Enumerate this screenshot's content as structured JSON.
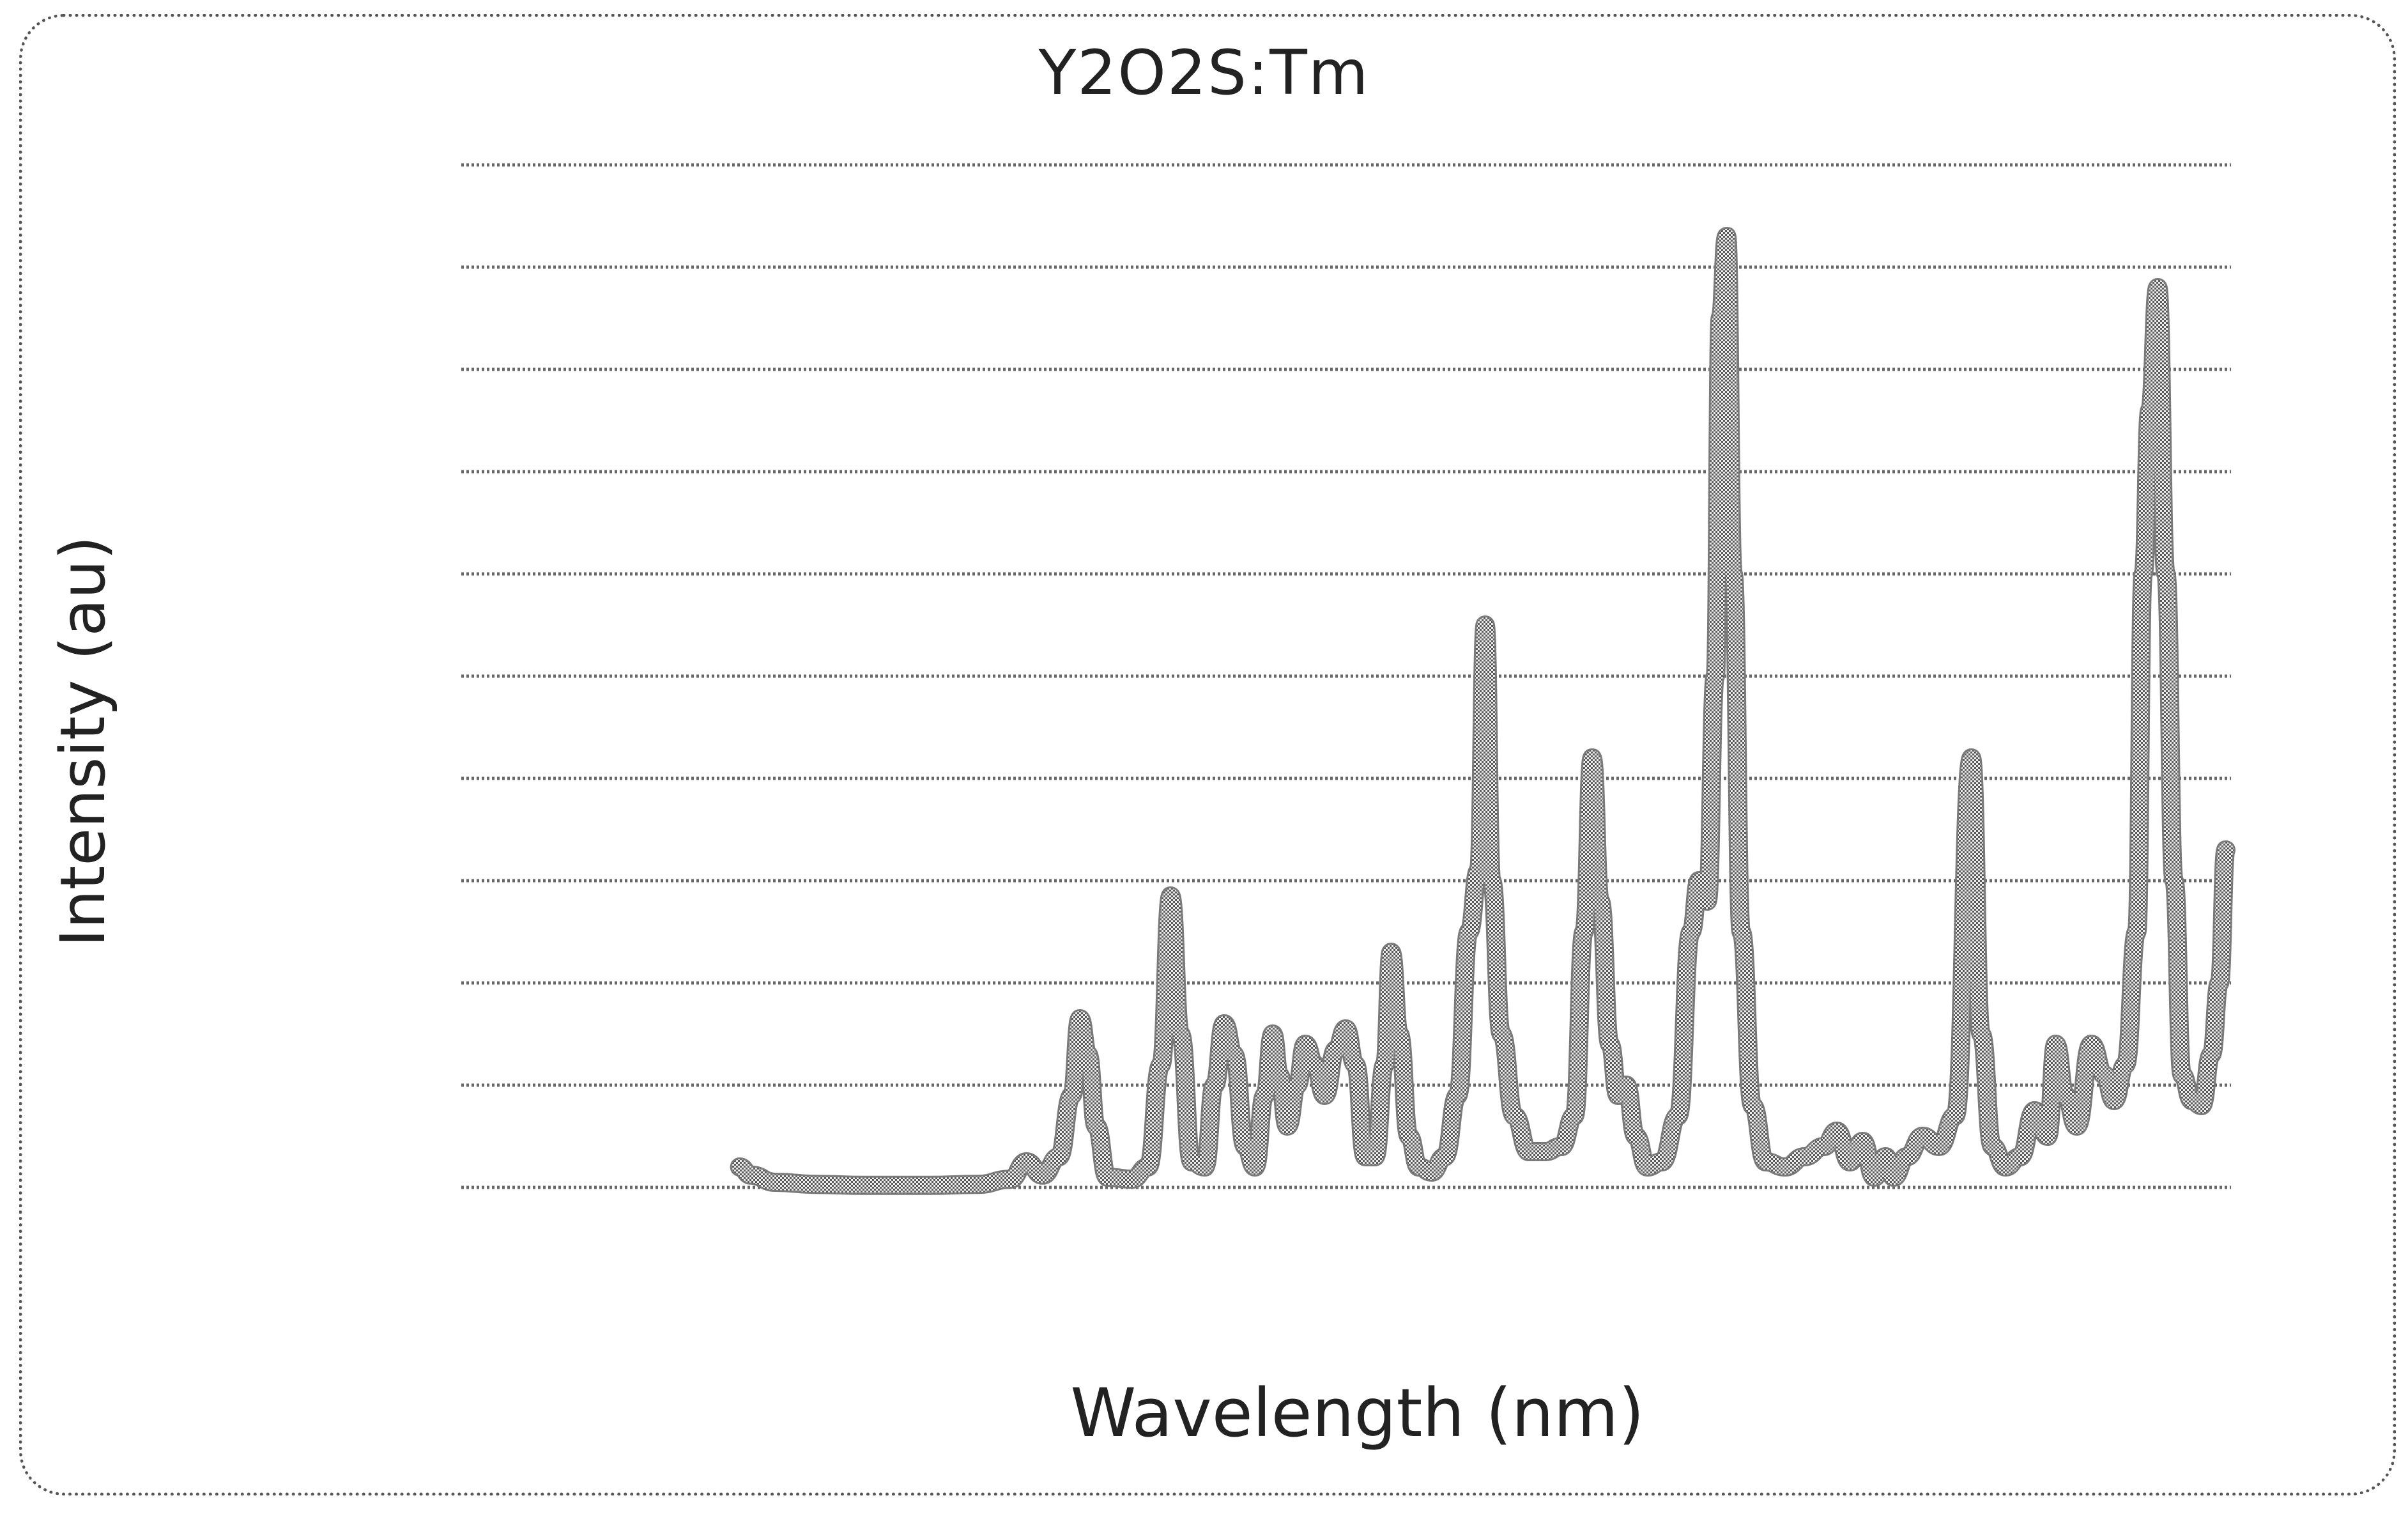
{
  "chart_data": {
    "type": "line",
    "title": "Y2O2S:Tm",
    "xlabel": "Wavelength (nm)",
    "ylabel": "Intensity (au)",
    "ylim": [
      0,
      10
    ],
    "xlim": [
      0,
      100
    ],
    "grid": true,
    "y_gridlines": [
      0,
      1,
      2,
      3,
      4,
      5,
      6,
      7,
      8,
      9,
      10
    ],
    "line_color": "#7a7a7a",
    "series": [
      {
        "values_xy": [
          [
            8.3,
            0.2
          ],
          [
            9.0,
            0.12
          ],
          [
            10.5,
            0.05
          ],
          [
            13,
            0.03
          ],
          [
            16,
            0.02
          ],
          [
            20,
            0.02
          ],
          [
            23,
            0.03
          ],
          [
            25,
            0.08
          ],
          [
            26,
            0.25
          ],
          [
            27,
            0.12
          ],
          [
            28,
            0.3
          ],
          [
            28.8,
            0.9
          ],
          [
            29.3,
            1.65
          ],
          [
            29.8,
            1.3
          ],
          [
            30.3,
            0.6
          ],
          [
            31,
            0.1
          ],
          [
            32.5,
            0.08
          ],
          [
            33.5,
            0.2
          ],
          [
            34.3,
            1.2
          ],
          [
            34.9,
            2.85
          ],
          [
            35.5,
            1.5
          ],
          [
            36.2,
            0.25
          ],
          [
            37.0,
            0.2
          ],
          [
            37.6,
            1.0
          ],
          [
            38.2,
            1.6
          ],
          [
            38.8,
            1.3
          ],
          [
            39.5,
            0.4
          ],
          [
            40.1,
            0.2
          ],
          [
            40.7,
            0.9
          ],
          [
            41.2,
            1.5
          ],
          [
            41.6,
            1.1
          ],
          [
            42.1,
            0.6
          ],
          [
            42.7,
            1.0
          ],
          [
            43.2,
            1.4
          ],
          [
            43.8,
            1.2
          ],
          [
            44.4,
            0.9
          ],
          [
            45.1,
            1.35
          ],
          [
            45.7,
            1.55
          ],
          [
            46.3,
            1.2
          ],
          [
            46.9,
            0.3
          ],
          [
            47.5,
            0.3
          ],
          [
            48.1,
            1.2
          ],
          [
            48.5,
            2.3
          ],
          [
            49.0,
            1.5
          ],
          [
            49.6,
            0.5
          ],
          [
            50.2,
            0.2
          ],
          [
            51.0,
            0.15
          ],
          [
            51.8,
            0.3
          ],
          [
            52.6,
            0.9
          ],
          [
            53.3,
            2.5
          ],
          [
            53.9,
            3.1
          ],
          [
            54.3,
            5.5
          ],
          [
            54.7,
            3.0
          ],
          [
            55.3,
            1.5
          ],
          [
            56.1,
            0.7
          ],
          [
            57.0,
            0.35
          ],
          [
            58.0,
            0.35
          ],
          [
            59.0,
            0.4
          ],
          [
            59.8,
            0.7
          ],
          [
            60.4,
            2.5
          ],
          [
            60.9,
            4.2
          ],
          [
            61.4,
            2.8
          ],
          [
            62.0,
            1.4
          ],
          [
            62.5,
            0.9
          ],
          [
            63.0,
            1.0
          ],
          [
            63.6,
            0.5
          ],
          [
            64.3,
            0.2
          ],
          [
            65.2,
            0.25
          ],
          [
            66.2,
            0.7
          ],
          [
            67.0,
            2.5
          ],
          [
            67.5,
            3.0
          ],
          [
            68.0,
            2.8
          ],
          [
            68.5,
            5.0
          ],
          [
            68.8,
            8.5
          ],
          [
            69.2,
            9.3
          ],
          [
            69.6,
            6.0
          ],
          [
            70.1,
            2.5
          ],
          [
            70.8,
            0.8
          ],
          [
            71.6,
            0.25
          ],
          [
            72.8,
            0.2
          ],
          [
            74.0,
            0.3
          ],
          [
            75.2,
            0.4
          ],
          [
            76.0,
            0.55
          ],
          [
            76.8,
            0.25
          ],
          [
            77.6,
            0.45
          ],
          [
            78.3,
            0.1
          ],
          [
            79.0,
            0.3
          ],
          [
            79.5,
            0.1
          ],
          [
            80.3,
            0.3
          ],
          [
            81.3,
            0.5
          ],
          [
            82.3,
            0.4
          ],
          [
            83.3,
            0.7
          ],
          [
            84.3,
            4.2
          ],
          [
            84.9,
            1.5
          ],
          [
            85.6,
            0.4
          ],
          [
            86.4,
            0.2
          ],
          [
            87.3,
            0.3
          ],
          [
            88.2,
            0.75
          ],
          [
            89.0,
            0.5
          ],
          [
            89.5,
            1.4
          ],
          [
            90.1,
            0.9
          ],
          [
            90.8,
            0.6
          ],
          [
            91.7,
            1.4
          ],
          [
            92.5,
            1.1
          ],
          [
            93.1,
            0.85
          ],
          [
            93.8,
            1.2
          ],
          [
            94.5,
            2.5
          ],
          [
            94.9,
            6.0
          ],
          [
            95.3,
            7.6
          ],
          [
            95.8,
            8.8
          ],
          [
            96.3,
            6.0
          ],
          [
            96.8,
            3.0
          ],
          [
            97.3,
            1.1
          ],
          [
            97.9,
            0.85
          ],
          [
            98.5,
            0.8
          ],
          [
            99.1,
            1.3
          ],
          [
            99.6,
            2.0
          ],
          [
            100.0,
            3.3
          ]
        ]
      }
    ]
  }
}
